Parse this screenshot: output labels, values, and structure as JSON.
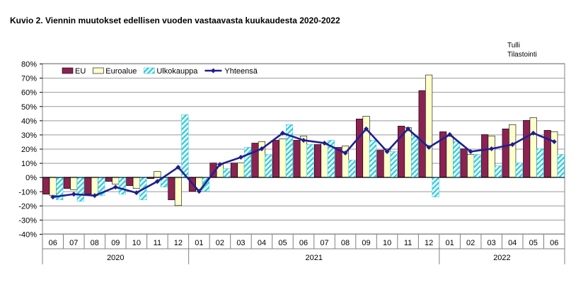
{
  "header": {
    "title": "Kuvio  2. Viennin  muutokset edellisen vuoden  vastaavasta kuukaudesta 2020-2022",
    "source_lines": [
      "Tulli",
      "Tilastointi"
    ]
  },
  "colors": {
    "eu": "#8b2252",
    "euroalue": "#ffffcc",
    "ulkokauppa": "#33ccdd",
    "yhteensa": "#1f1f8f"
  },
  "chart_data": {
    "type": "bar",
    "title": "Kuvio  2. Viennin  muutokset edellisen vuoden  vastaavasta kuukaudesta 2020-2022",
    "categories": [
      "06",
      "07",
      "08",
      "09",
      "10",
      "11",
      "12",
      "01",
      "02",
      "03",
      "04",
      "05",
      "06",
      "07",
      "08",
      "09",
      "10",
      "11",
      "12",
      "01",
      "02",
      "03",
      "04",
      "05",
      "06"
    ],
    "years": [
      {
        "label": "2020",
        "months": 7
      },
      {
        "label": "2021",
        "months": 12
      },
      {
        "label": "2022",
        "months": 6
      }
    ],
    "ylim": [
      -40,
      80
    ],
    "yticks": [
      "-40%",
      "-30%",
      "-20%",
      "-10%",
      "0%",
      "10%",
      "20%",
      "30%",
      "40%",
      "50%",
      "60%",
      "70%",
      "80%"
    ],
    "ytick_values": [
      -40,
      -30,
      -20,
      -10,
      0,
      10,
      20,
      30,
      40,
      50,
      60,
      70,
      80
    ],
    "legend_position": "top-left",
    "series": [
      {
        "name": "EU",
        "kind": "bar",
        "values": [
          -12,
          -8,
          -12,
          -3,
          -6,
          -1,
          -16,
          -10,
          10,
          10,
          24,
          26,
          26,
          23,
          21,
          41,
          19,
          36,
          61,
          32,
          20,
          30,
          34,
          40,
          33
        ]
      },
      {
        "name": "Euroalue",
        "kind": "bar",
        "values": [
          -13,
          -9,
          -13,
          -5,
          -8,
          4,
          -20,
          -9,
          9,
          10,
          25,
          27,
          29,
          24,
          22,
          43,
          20,
          35,
          72,
          29,
          16,
          29,
          37,
          42,
          32
        ]
      },
      {
        "name": "Ulkokauppa",
        "kind": "bar",
        "values": [
          -16,
          -17,
          -13,
          -12,
          -16,
          -7,
          44,
          -10,
          6,
          21,
          16,
          37,
          23,
          26,
          12,
          26,
          18,
          29,
          -14,
          25,
          16,
          8,
          10,
          20,
          16
        ]
      },
      {
        "name": "Yhteensä",
        "kind": "line",
        "values": [
          -14,
          -12,
          -13,
          -7,
          -11,
          -3,
          7,
          -10,
          9,
          14,
          20,
          31,
          26,
          24,
          17,
          34,
          18,
          34,
          21,
          30,
          18,
          20,
          23,
          31,
          25
        ]
      }
    ]
  }
}
